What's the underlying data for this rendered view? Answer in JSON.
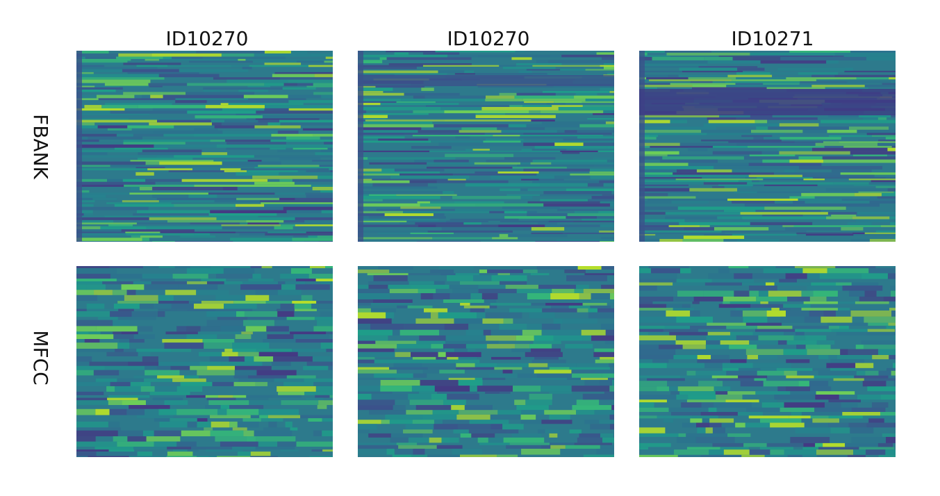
{
  "columns": [
    "ID10270",
    "ID10270",
    "ID10271"
  ],
  "rows": [
    "FBANK",
    "MFCC"
  ]
}
